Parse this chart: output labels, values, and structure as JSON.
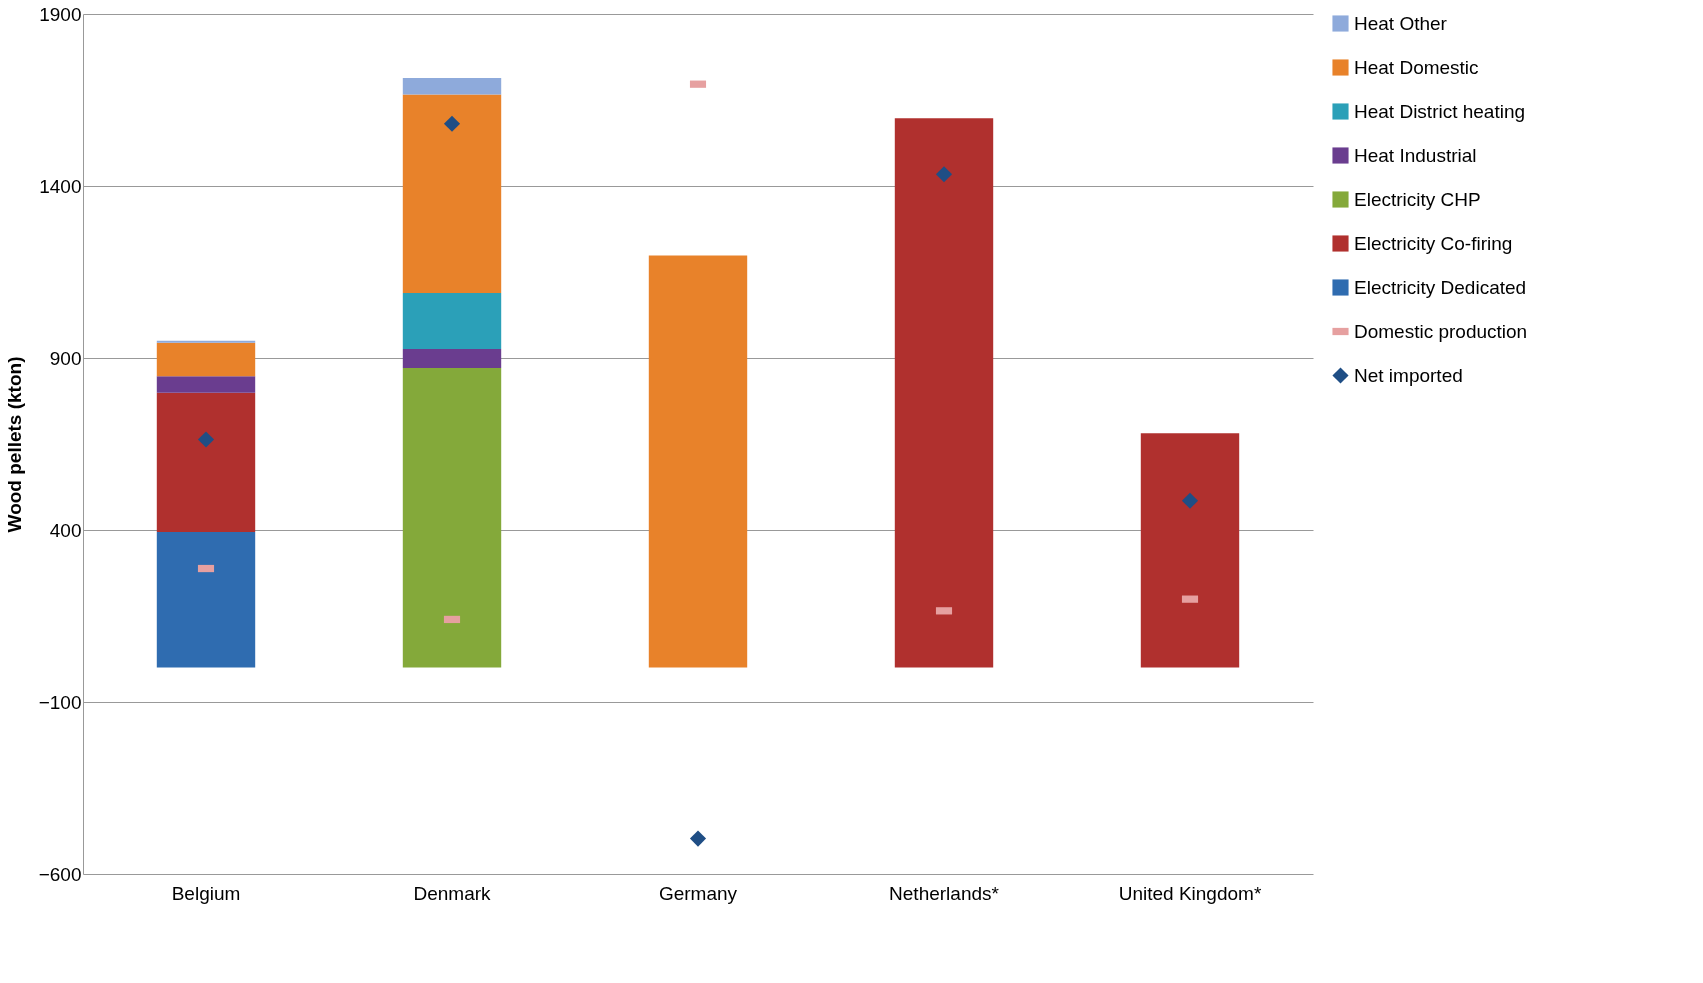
{
  "chart_data": {
    "type": "bar",
    "stacked": true,
    "ylabel": "Wood pellets (kton)",
    "categories": [
      "Belgium",
      "Denmark",
      "Germany",
      "Netherlands*",
      "United Kingdom*"
    ],
    "series": [
      {
        "name": "Electricity Dedicated",
        "color": "#2f6cb0",
        "values": [
          394,
          null,
          null,
          null,
          null
        ]
      },
      {
        "name": "Electricity Co-firing",
        "color": "#b0302e",
        "values": [
          405,
          null,
          null,
          1597,
          681
        ]
      },
      {
        "name": "Electricity CHP",
        "color": "#84a93a",
        "values": [
          null,
          871,
          null,
          null,
          null
        ]
      },
      {
        "name": "Heat Industrial",
        "color": "#6a3d8f",
        "values": [
          48,
          55,
          null,
          null,
          null
        ]
      },
      {
        "name": "Heat District heating",
        "color": "#2ba0b8",
        "values": [
          null,
          163,
          null,
          null,
          null
        ]
      },
      {
        "name": "Heat Domestic",
        "color": "#e8822a",
        "values": [
          97,
          577,
          1198,
          null,
          null
        ]
      },
      {
        "name": "Heat Other",
        "color": "#8eaadb",
        "values": [
          6,
          48,
          null,
          null,
          null
        ]
      },
      {
        "name": "Domestic production",
        "type": "scatter",
        "marker": "square",
        "color": "#e6a0a0",
        "values": [
          288,
          140,
          1696,
          165,
          199
        ]
      },
      {
        "name": "Net imported",
        "type": "scatter",
        "marker": "diamond",
        "color": "#1f4e85",
        "values": [
          663,
          1581,
          -497,
          1434,
          485
        ]
      }
    ],
    "ylim": [
      -600,
      1900
    ],
    "yticks": [
      1900,
      1400,
      900,
      400,
      -100,
      -600
    ],
    "grid": "y",
    "legend": "right"
  }
}
